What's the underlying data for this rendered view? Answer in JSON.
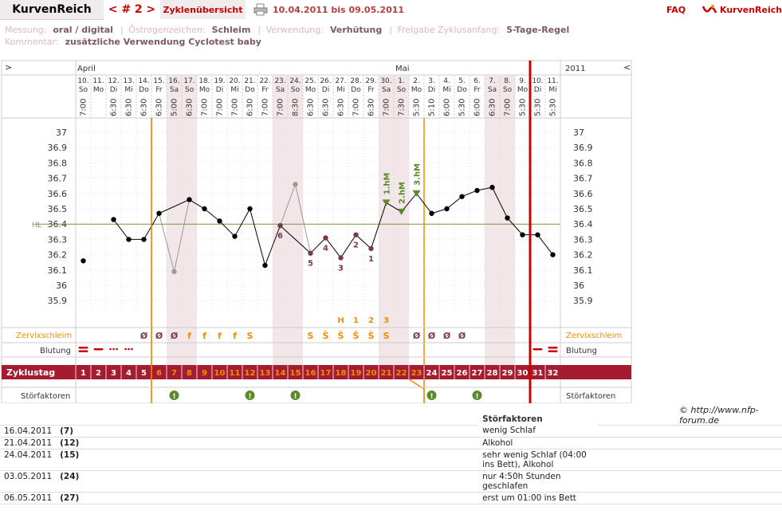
{
  "header": {
    "brand": "KurvenReich",
    "cycle_nav": "< # 2 >",
    "overview_tab": "Zyklenübersicht",
    "print_icon": "print-icon",
    "date_range": "10.04.2011 bis 09.05.2011",
    "faq": "FAQ",
    "logo_text": "KurvenReich"
  },
  "meta": {
    "messung_label": "Messung:",
    "messung_value": "oral / digital",
    "oestrogen_label": "Östrogenzeichen:",
    "oestrogen_value": "Schleim",
    "verwendung_label": "Verwendung:",
    "verwendung_value": "Verhütung",
    "freigabe_label": "Freigabe Zyklusanfang:",
    "freigabe_value": "5-Tage-Regel",
    "kommentar_label": "Kommentar:",
    "kommentar_value": "zusätzliche Verwendung Cyclotest baby"
  },
  "grid": {
    "left_arrow": ">",
    "right_arrow": "<",
    "month_april": "April",
    "month_mai": "Mai",
    "year": "2011",
    "hl_label": "HL",
    "row_labels": {
      "zervix": "Zervixschleim",
      "blutung": "Blutung",
      "zyklustag": "Zyklustag",
      "stoerfaktoren": "Störfaktoren"
    },
    "colors": {
      "accent_red": "#cc0000",
      "band_red": "#a51c30",
      "orange": "#f28c00",
      "green": "#5a8a2a",
      "hl_green": "#6e9a3f",
      "pink_col": "#f3e6e8"
    }
  },
  "chart_data": {
    "type": "line",
    "ylim": [
      35.8,
      37.1
    ],
    "yticks": [
      "37",
      "36.9",
      "36.8",
      "36.7",
      "36.6",
      "36.5",
      "36.4",
      "36.3",
      "36.2",
      "36.1",
      "36",
      "35.9"
    ],
    "hl": 36.4,
    "days": [
      {
        "n": "1",
        "date": "10.",
        "wd": "So",
        "time": "7:00",
        "temp": 36.16,
        "blut": "heavy",
        "pink": false
      },
      {
        "n": "2",
        "date": "11.",
        "wd": "Mo",
        "time": "",
        "temp": null,
        "blut": "dash",
        "pink": false
      },
      {
        "n": "3",
        "date": "12.",
        "wd": "Di",
        "time": "6:30",
        "temp": 36.43,
        "blut": "dots",
        "pink": false
      },
      {
        "n": "4",
        "date": "13.",
        "wd": "Mi",
        "time": "6:30",
        "temp": 36.3,
        "blut": "dots",
        "pink": false
      },
      {
        "n": "5",
        "date": "14.",
        "wd": "Do",
        "time": "6:30",
        "temp": 36.3,
        "zervix": "Ø",
        "pink": false
      },
      {
        "n": "6",
        "date": "15.",
        "wd": "Fr",
        "time": "6:30",
        "temp": 36.47,
        "zervix": "Ø",
        "pink": false
      },
      {
        "n": "7",
        "date": "16.",
        "wd": "Sa",
        "time": "5:00",
        "temp": 36.09,
        "excl": true,
        "zervix": "Ø",
        "stoer": true,
        "pink": true
      },
      {
        "n": "8",
        "date": "17.",
        "wd": "So",
        "time": "6:30",
        "temp": 36.56,
        "zervix": "f",
        "pink": true
      },
      {
        "n": "9",
        "date": "18.",
        "wd": "Mo",
        "time": "7:00",
        "temp": 36.5,
        "zervix": "f",
        "pink": false
      },
      {
        "n": "10",
        "date": "19.",
        "wd": "Di",
        "time": "7:00",
        "temp": 36.42,
        "zervix": "f",
        "pink": false
      },
      {
        "n": "11",
        "date": "20.",
        "wd": "Mi",
        "time": "7:00",
        "temp": 36.32,
        "zervix": "f",
        "pink": false
      },
      {
        "n": "12",
        "date": "21.",
        "wd": "Do",
        "time": "6:30",
        "temp": 36.5,
        "zervix": "S",
        "stoer": true,
        "pink": false
      },
      {
        "n": "13",
        "date": "22.",
        "wd": "Fr",
        "time": "7:00",
        "temp": 36.13,
        "pink": false
      },
      {
        "n": "14",
        "date": "23.",
        "wd": "Sa",
        "time": "7:00",
        "temp": 36.39,
        "label": "6",
        "pink": true
      },
      {
        "n": "15",
        "date": "24.",
        "wd": "So",
        "time": "8:30",
        "temp": 36.66,
        "excl": true,
        "stoer": true,
        "pink": true
      },
      {
        "n": "16",
        "date": "25.",
        "wd": "Mo",
        "time": "6:30",
        "temp": 36.21,
        "label": "5",
        "zervix": "S",
        "pink": false
      },
      {
        "n": "17",
        "date": "26.",
        "wd": "Di",
        "time": "6:30",
        "temp": 36.31,
        "label": "4",
        "zervix": "Ŝ",
        "pink": false
      },
      {
        "n": "18",
        "date": "27.",
        "wd": "Mi",
        "time": "6:30",
        "temp": 36.18,
        "label": "3",
        "zervix": "Ŝ",
        "mark": "H",
        "pink": false
      },
      {
        "n": "19",
        "date": "28.",
        "wd": "Do",
        "time": "7:00",
        "temp": 36.33,
        "label": "2",
        "zervix": "Ŝ",
        "mark": "1",
        "pink": false
      },
      {
        "n": "20",
        "date": "29.",
        "wd": "Fr",
        "time": "6:30",
        "temp": 36.24,
        "label": "1",
        "zervix": "Ŝ",
        "mark": "2",
        "pink": false
      },
      {
        "n": "21",
        "date": "30.",
        "wd": "Sa",
        "time": "7:00",
        "temp": 36.54,
        "hm": "1.hM",
        "zervix": "S",
        "mark": "3",
        "pink": true
      },
      {
        "n": "22",
        "date": "1.",
        "wd": "So",
        "time": "7:30",
        "temp": 36.48,
        "hm": "2.hM",
        "pink": true
      },
      {
        "n": "23",
        "date": "2.",
        "wd": "Mo",
        "time": "5:30",
        "temp": 36.6,
        "hm": "3.hM",
        "zervix": "Ø",
        "pink": false
      },
      {
        "n": "24",
        "date": "3.",
        "wd": "Di",
        "time": "5:10",
        "temp": 36.47,
        "zervix": "Ø",
        "stoer": true,
        "pink": false
      },
      {
        "n": "25",
        "date": "4.",
        "wd": "Mi",
        "time": "6:00",
        "temp": 36.5,
        "zervix": "Ø",
        "pink": false
      },
      {
        "n": "26",
        "date": "5.",
        "wd": "Do",
        "time": "5:30",
        "temp": 36.58,
        "zervix": "Ø",
        "pink": false
      },
      {
        "n": "27",
        "date": "6.",
        "wd": "Fr",
        "time": "6:00",
        "temp": 36.62,
        "stoer": true,
        "pink": false
      },
      {
        "n": "28",
        "date": "7.",
        "wd": "Sa",
        "time": "6:30",
        "temp": 36.64,
        "pink": true
      },
      {
        "n": "29",
        "date": "8.",
        "wd": "So",
        "time": "7:00",
        "temp": 36.44,
        "pink": true
      },
      {
        "n": "30",
        "date": "9.",
        "wd": "Mo",
        "time": "5:30",
        "temp": 36.33,
        "pink": false
      },
      {
        "n": "31",
        "date": "10.",
        "wd": "Di",
        "time": "5:30",
        "temp": 36.33,
        "blut": "dash",
        "pink": false
      },
      {
        "n": "32",
        "date": "11.",
        "wd": "Mi",
        "time": "5:30",
        "temp": 36.2,
        "blut": "heavy",
        "pink": false
      }
    ]
  },
  "footnotes": {
    "copyright": "© http://www.nfp-forum.de",
    "header": "Störfaktoren",
    "rows": [
      {
        "date": "16.04.2011",
        "day": "(7)",
        "text": "wenig Schlaf"
      },
      {
        "date": "21.04.2011",
        "day": "(12)",
        "text": "Alkohol"
      },
      {
        "date": "24.04.2011",
        "day": "(15)",
        "text": "sehr wenig Schlaf (04:00 ins Bett), Alkohol"
      },
      {
        "date": "03.05.2011",
        "day": "(24)",
        "text": "nur 4:50h Stunden geschlafen"
      },
      {
        "date": "06.05.2011",
        "day": "(27)",
        "text": "erst um 01:00 ins Bett"
      }
    ]
  }
}
